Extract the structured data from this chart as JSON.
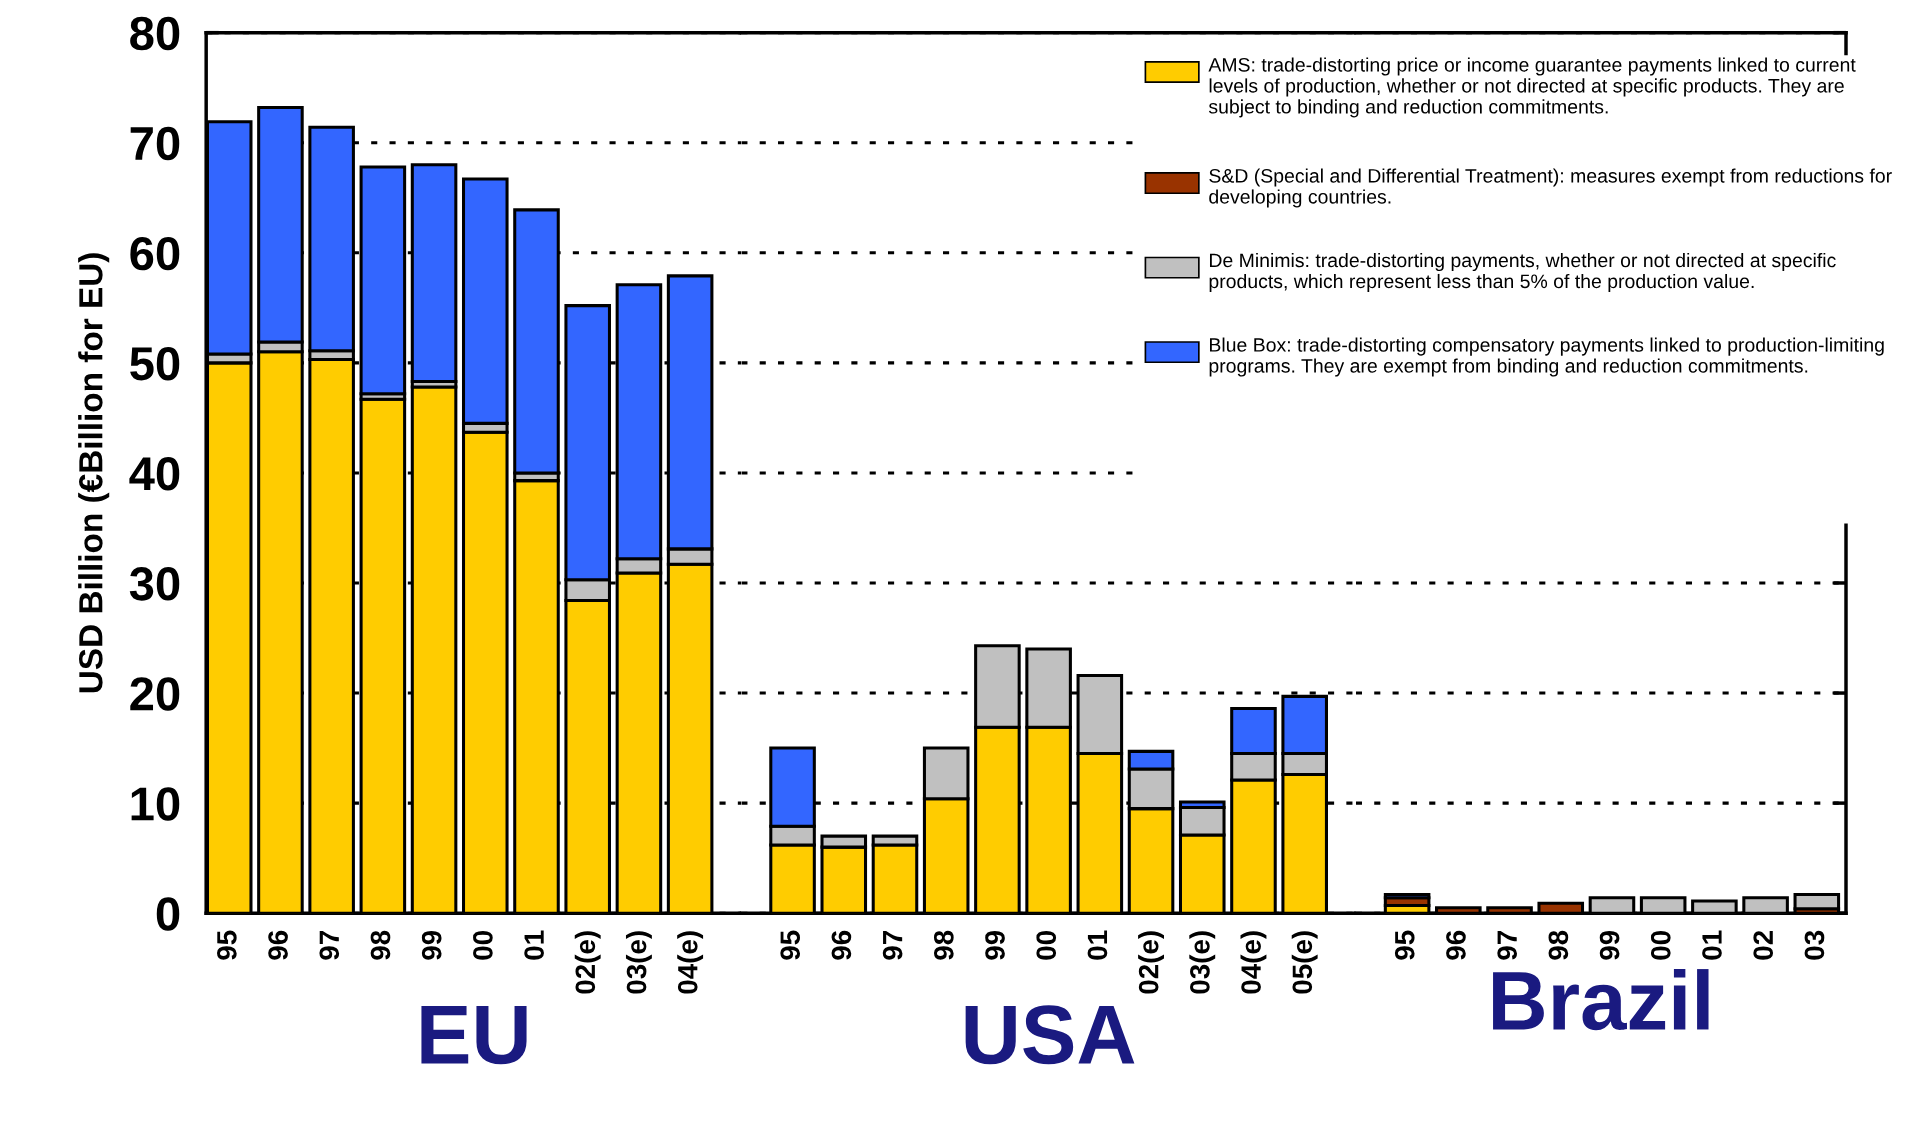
{
  "chart_data": [
    {
      "type": "bar",
      "stacked": true,
      "ylabel": "USD Billion (€Billion for EU)",
      "xlabel": "EU",
      "categories": [
        "95",
        "96",
        "97",
        "98",
        "99",
        "00",
        "01",
        "02(e)",
        "03(e)",
        "04(e)"
      ],
      "ylim": [
        0,
        80
      ],
      "yticks": [
        0,
        10,
        20,
        30,
        40,
        50,
        60,
        70,
        80
      ],
      "grid": "y",
      "legend": "top right",
      "series": [
        {
          "name": "AMS: trade-distorting price or income guarantee payments linked to current levels of production, whether or not directed at specific products. They are subject to binding and reduction commitments.",
          "color": "#ffcc00",
          "values": [
            50.0,
            51.0,
            50.3,
            46.7,
            47.8,
            43.7,
            39.3,
            28.4,
            30.9,
            31.7
          ]
        },
        {
          "name": "S&D (Special and Differential Treatment): measures exempt from reductions for developing countries.",
          "color": "#993300",
          "values": [
            null,
            null,
            null,
            null,
            null,
            null,
            null,
            null,
            null,
            null
          ]
        },
        {
          "name": "De Minimis: trade-distorting payments, whether or not directed at specific products, which represent less than 5% of the production value.",
          "color": "#c0c0c0",
          "values": [
            0.8,
            0.9,
            0.8,
            0.5,
            0.5,
            0.8,
            0.7,
            1.9,
            1.3,
            1.4
          ]
        },
        {
          "name": "Blue Box: trade-distorting compensatory payments linked to production-limiting programs. They are exempt from binding and reduction commitments.",
          "color": "#3366ff",
          "values": [
            21.1,
            21.3,
            20.3,
            20.6,
            19.7,
            22.2,
            23.9,
            24.9,
            24.9,
            24.8
          ]
        }
      ]
    },
    {
      "type": "bar",
      "stacked": true,
      "xlabel": "USA",
      "categories": [
        "95",
        "96",
        "97",
        "98",
        "99",
        "00",
        "01",
        "02(e)",
        "03(e)",
        "04(e)",
        "05(e)"
      ],
      "ylim": [
        0,
        80
      ],
      "yticks": [
        0,
        10,
        20,
        30,
        40,
        50,
        60,
        70,
        80
      ],
      "grid": "y",
      "tick_labels": "x",
      "series": [
        {
          "color": "#ffcc00",
          "values": [
            6.2,
            6.0,
            6.2,
            10.4,
            16.9,
            16.9,
            14.5,
            9.5,
            7.1,
            12.1,
            12.6
          ]
        },
        {
          "color": "#993300",
          "values": [
            null,
            null,
            null,
            null,
            null,
            null,
            null,
            null,
            null,
            null,
            null
          ]
        },
        {
          "color": "#c0c0c0",
          "values": [
            1.7,
            1.0,
            0.8,
            4.6,
            7.4,
            7.1,
            7.1,
            3.6,
            2.5,
            2.4,
            1.9
          ]
        },
        {
          "color": "#3366ff",
          "values": [
            7.1,
            null,
            null,
            null,
            null,
            null,
            null,
            1.6,
            0.5,
            4.1,
            5.2
          ]
        }
      ]
    },
    {
      "type": "bar",
      "stacked": true,
      "xlabel": "Brazil",
      "categories": [
        "95",
        "96",
        "97",
        "98",
        "99",
        "00",
        "01",
        "02",
        "03"
      ],
      "ylim": [
        0,
        80
      ],
      "yticks": [
        0,
        10,
        20,
        30,
        40,
        50,
        60,
        70,
        80
      ],
      "grid": "y",
      "tick_labels": "x",
      "series": [
        {
          "color": "#ffcc00",
          "values": [
            0.7,
            null,
            null,
            null,
            null,
            null,
            null,
            null,
            null
          ]
        },
        {
          "color": "#993300",
          "values": [
            0.7,
            0.5,
            0.5,
            0.9,
            null,
            null,
            null,
            null,
            0.4
          ]
        },
        {
          "color": "#c0c0c0",
          "values": [
            null,
            null,
            null,
            null,
            1.4,
            1.4,
            1.1,
            1.4,
            1.3
          ]
        },
        {
          "color": "#3366ff",
          "values": [
            0.3,
            null,
            null,
            null,
            null,
            null,
            null,
            null,
            null
          ]
        }
      ]
    }
  ]
}
